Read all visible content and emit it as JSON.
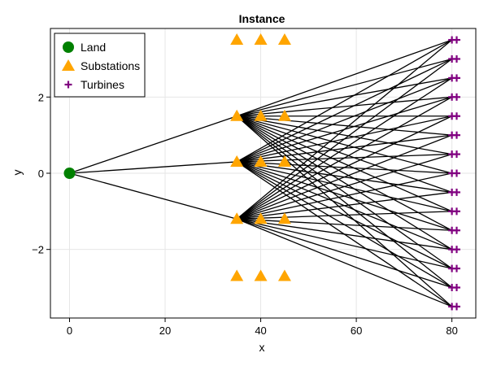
{
  "chart_data": {
    "type": "scatter",
    "title": "Instance",
    "xlabel": "x",
    "ylabel": "y",
    "xlim": [
      -4,
      85
    ],
    "ylim": [
      -3.8,
      3.8
    ],
    "xticks": [
      0,
      20,
      40,
      60,
      80
    ],
    "yticks": [
      -2,
      0,
      2
    ],
    "x_tick_labels": [
      "0",
      "20",
      "40",
      "60",
      "80"
    ],
    "y_tick_labels": [
      "−2",
      "0",
      "2"
    ],
    "grid": true,
    "legend_position": "top-left",
    "colors": {
      "land": "#008000",
      "substations": "#ffa500",
      "turbines": "#800080",
      "edges": "#000000",
      "grid": "#e6e6e6"
    },
    "series": [
      {
        "name": "Land",
        "marker": "circle",
        "points": [
          [
            0,
            0
          ]
        ]
      },
      {
        "name": "Substations",
        "marker": "triangle",
        "points": [
          [
            35,
            3.5
          ],
          [
            40,
            3.5
          ],
          [
            45,
            3.5
          ],
          [
            35,
            1.5
          ],
          [
            40,
            1.5
          ],
          [
            45,
            1.5
          ],
          [
            35,
            0.3
          ],
          [
            40,
            0.3
          ],
          [
            45,
            0.3
          ],
          [
            35,
            -1.2
          ],
          [
            40,
            -1.2
          ],
          [
            45,
            -1.2
          ],
          [
            35,
            -2.7
          ],
          [
            40,
            -2.7
          ],
          [
            45,
            -2.7
          ]
        ]
      },
      {
        "name": "Turbines",
        "marker": "cross",
        "points": [
          [
            80,
            3.5
          ],
          [
            81,
            3.5
          ],
          [
            80,
            3.0
          ],
          [
            81,
            3.0
          ],
          [
            80,
            2.5
          ],
          [
            81,
            2.5
          ],
          [
            80,
            2.0
          ],
          [
            81,
            2.0
          ],
          [
            80,
            1.5
          ],
          [
            81,
            1.5
          ],
          [
            80,
            1.0
          ],
          [
            81,
            1.0
          ],
          [
            80,
            0.5
          ],
          [
            81,
            0.5
          ],
          [
            80,
            0.0
          ],
          [
            81,
            0.0
          ],
          [
            80,
            -0.5
          ],
          [
            81,
            -0.5
          ],
          [
            80,
            -1.0
          ],
          [
            81,
            -1.0
          ],
          [
            80,
            -1.5
          ],
          [
            81,
            -1.5
          ],
          [
            80,
            -2.0
          ],
          [
            81,
            -2.0
          ],
          [
            80,
            -2.5
          ],
          [
            81,
            -2.5
          ],
          [
            80,
            -3.0
          ],
          [
            81,
            -3.0
          ],
          [
            80,
            -3.5
          ],
          [
            81,
            -3.5
          ]
        ]
      }
    ],
    "edges": [
      [
        [
          0,
          0
        ],
        [
          35,
          1.5
        ]
      ],
      [
        [
          0,
          0
        ],
        [
          35,
          0.3
        ]
      ],
      [
        [
          0,
          0
        ],
        [
          35,
          -1.2
        ]
      ],
      [
        [
          35,
          1.5
        ],
        [
          80,
          3.5
        ]
      ],
      [
        [
          35,
          1.5
        ],
        [
          80,
          3.0
        ]
      ],
      [
        [
          35,
          1.5
        ],
        [
          80,
          2.5
        ]
      ],
      [
        [
          35,
          1.5
        ],
        [
          80,
          2.0
        ]
      ],
      [
        [
          35,
          1.5
        ],
        [
          80,
          1.5
        ]
      ],
      [
        [
          35,
          1.5
        ],
        [
          80,
          1.0
        ]
      ],
      [
        [
          35,
          1.5
        ],
        [
          80,
          0.5
        ]
      ],
      [
        [
          35,
          1.5
        ],
        [
          80,
          0.0
        ]
      ],
      [
        [
          35,
          1.5
        ],
        [
          80,
          -0.5
        ]
      ],
      [
        [
          35,
          1.5
        ],
        [
          80,
          -1.0
        ]
      ],
      [
        [
          35,
          1.5
        ],
        [
          80,
          -1.5
        ]
      ],
      [
        [
          35,
          1.5
        ],
        [
          80,
          -2.0
        ]
      ],
      [
        [
          35,
          1.5
        ],
        [
          80,
          -2.5
        ]
      ],
      [
        [
          35,
          1.5
        ],
        [
          80,
          -3.0
        ]
      ],
      [
        [
          35,
          1.5
        ],
        [
          80,
          -3.5
        ]
      ],
      [
        [
          35,
          0.3
        ],
        [
          80,
          3.5
        ]
      ],
      [
        [
          35,
          0.3
        ],
        [
          80,
          3.0
        ]
      ],
      [
        [
          35,
          0.3
        ],
        [
          80,
          2.5
        ]
      ],
      [
        [
          35,
          0.3
        ],
        [
          80,
          2.0
        ]
      ],
      [
        [
          35,
          0.3
        ],
        [
          80,
          1.5
        ]
      ],
      [
        [
          35,
          0.3
        ],
        [
          80,
          1.0
        ]
      ],
      [
        [
          35,
          0.3
        ],
        [
          80,
          0.5
        ]
      ],
      [
        [
          35,
          0.3
        ],
        [
          80,
          0.0
        ]
      ],
      [
        [
          35,
          0.3
        ],
        [
          80,
          -0.5
        ]
      ],
      [
        [
          35,
          0.3
        ],
        [
          80,
          -1.0
        ]
      ],
      [
        [
          35,
          0.3
        ],
        [
          80,
          -1.5
        ]
      ],
      [
        [
          35,
          0.3
        ],
        [
          80,
          -2.0
        ]
      ],
      [
        [
          35,
          0.3
        ],
        [
          80,
          -2.5
        ]
      ],
      [
        [
          35,
          0.3
        ],
        [
          80,
          -3.0
        ]
      ],
      [
        [
          35,
          0.3
        ],
        [
          80,
          -3.5
        ]
      ],
      [
        [
          35,
          -1.2
        ],
        [
          80,
          3.5
        ]
      ],
      [
        [
          35,
          -1.2
        ],
        [
          80,
          3.0
        ]
      ],
      [
        [
          35,
          -1.2
        ],
        [
          80,
          2.5
        ]
      ],
      [
        [
          35,
          -1.2
        ],
        [
          80,
          2.0
        ]
      ],
      [
        [
          35,
          -1.2
        ],
        [
          80,
          1.5
        ]
      ],
      [
        [
          35,
          -1.2
        ],
        [
          80,
          1.0
        ]
      ],
      [
        [
          35,
          -1.2
        ],
        [
          80,
          0.5
        ]
      ],
      [
        [
          35,
          -1.2
        ],
        [
          80,
          0.0
        ]
      ],
      [
        [
          35,
          -1.2
        ],
        [
          80,
          -0.5
        ]
      ],
      [
        [
          35,
          -1.2
        ],
        [
          80,
          -1.0
        ]
      ],
      [
        [
          35,
          -1.2
        ],
        [
          80,
          -1.5
        ]
      ],
      [
        [
          35,
          -1.2
        ],
        [
          80,
          -2.0
        ]
      ],
      [
        [
          35,
          -1.2
        ],
        [
          80,
          -2.5
        ]
      ],
      [
        [
          35,
          -1.2
        ],
        [
          80,
          -3.0
        ]
      ],
      [
        [
          35,
          -1.2
        ],
        [
          80,
          -3.5
        ]
      ]
    ]
  }
}
